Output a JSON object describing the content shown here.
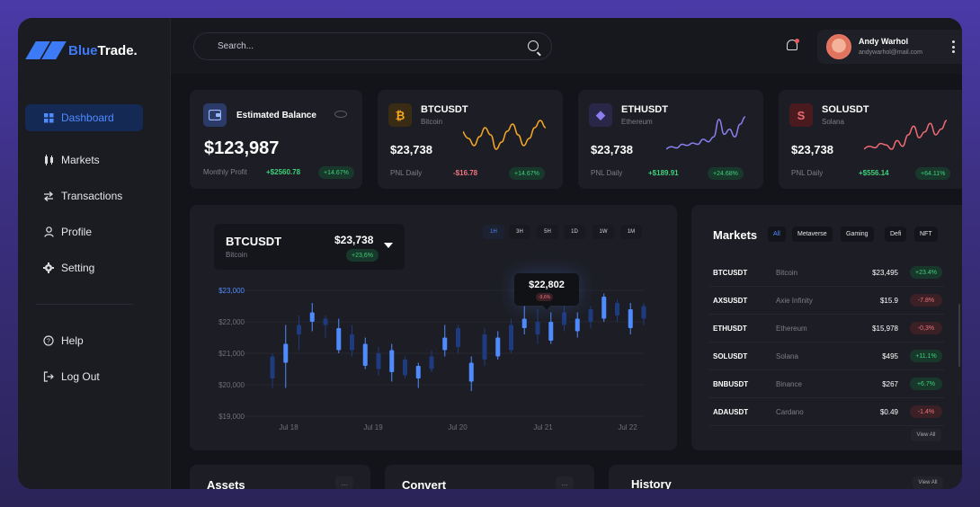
{
  "brand": {
    "name_part1": "Blue",
    "name_part2": "Trade."
  },
  "colors": {
    "accent": "#3d7af5",
    "positive": "#3ed07a",
    "negative": "#f0737e",
    "candle": "#4e8bff"
  },
  "nav": {
    "items": [
      {
        "label": "Dashboard",
        "icon": "grid-icon"
      },
      {
        "label": "Markets",
        "icon": "candles-icon"
      },
      {
        "label": "Transactions",
        "icon": "swap-icon"
      },
      {
        "label": "Profile",
        "icon": "user-icon"
      },
      {
        "label": "Setting",
        "icon": "gear-icon"
      }
    ],
    "bottom": [
      {
        "label": "Help",
        "icon": "help-icon"
      },
      {
        "label": "Log Out",
        "icon": "logout-icon"
      }
    ]
  },
  "search": {
    "placeholder": "Search..."
  },
  "user": {
    "name": "Andy Warhol",
    "email": "andywarhol@mail.com"
  },
  "balance": {
    "title": "Estimated Balance",
    "value": "$123,987",
    "label": "Monthly Profit",
    "change": "+$2560.78",
    "badge": "+14.67%"
  },
  "tickers": [
    {
      "symbol": "BTCUSDT",
      "name": "Bitcoin",
      "price": "$23,738",
      "pnl_label": "PNL Daily",
      "change": "-$16.78",
      "badge": "+14.67%",
      "color": "#f7a823",
      "bg": "#3a2c14",
      "glyph": "₿",
      "spark": [
        14,
        18,
        22,
        17,
        12,
        16,
        24,
        20,
        14,
        10,
        16,
        22,
        18,
        12,
        8,
        12
      ]
    },
    {
      "symbol": "ETHUSDT",
      "name": "Ethereum",
      "price": "$23,738",
      "pnl_label": "PNL Daily",
      "change": "+$189.91",
      "badge": "+24.68%",
      "color": "#8b7ff0",
      "bg": "#2a2648",
      "glyph": "◆",
      "spark": [
        30,
        28,
        29,
        26,
        27,
        25,
        26,
        22,
        24,
        20,
        6,
        18,
        14,
        20,
        10,
        4
      ]
    },
    {
      "symbol": "SOLUSDT",
      "name": "Solana",
      "price": "$23,738",
      "pnl_label": "PNL Daily",
      "change": "+$556.14",
      "badge": "+64.11%",
      "color": "#f06a73",
      "bg": "#4a1a1e",
      "glyph": "S",
      "spark": [
        26,
        24,
        25,
        22,
        23,
        26,
        20,
        24,
        16,
        10,
        18,
        14,
        8,
        16,
        12,
        6
      ]
    }
  ],
  "main_chart": {
    "symbol": "BTCUSDT",
    "name": "Bitcoin",
    "price": "$23,738",
    "badge": "+23,6%",
    "timeframes": [
      "1H",
      "3H",
      "5H",
      "1D",
      "1W",
      "1M"
    ],
    "tooltip": {
      "price": "$22,802",
      "badge": "-9,6%"
    }
  },
  "chart_data": {
    "type": "candlestick",
    "title": "BTCUSDT",
    "y_ticks": [
      "$23,000",
      "$22,000",
      "$21,000",
      "$20,000",
      "$19,000"
    ],
    "ylim": [
      19000,
      23500
    ],
    "x_ticks": [
      "Jul 18",
      "Jul 19",
      "Jul 20",
      "Jul 21",
      "Jul 22"
    ],
    "candles": [
      {
        "o": 20200,
        "c": 20900,
        "h": 21000,
        "l": 19900,
        "up": false
      },
      {
        "o": 20700,
        "c": 21300,
        "h": 21900,
        "l": 19900,
        "up": true
      },
      {
        "o": 21600,
        "c": 21900,
        "h": 22200,
        "l": 21100,
        "up": false
      },
      {
        "o": 22000,
        "c": 22300,
        "h": 22600,
        "l": 21700,
        "up": true
      },
      {
        "o": 21900,
        "c": 22100,
        "h": 22200,
        "l": 21500,
        "up": false
      },
      {
        "o": 21100,
        "c": 21800,
        "h": 22100,
        "l": 21000,
        "up": true
      },
      {
        "o": 21600,
        "c": 21100,
        "h": 21900,
        "l": 20900,
        "up": false
      },
      {
        "o": 21300,
        "c": 20600,
        "h": 21500,
        "l": 20500,
        "up": true
      },
      {
        "o": 20500,
        "c": 21000,
        "h": 21200,
        "l": 20300,
        "up": false
      },
      {
        "o": 21100,
        "c": 20400,
        "h": 21300,
        "l": 20100,
        "up": true
      },
      {
        "o": 20800,
        "c": 20300,
        "h": 20900,
        "l": 20200,
        "up": false
      },
      {
        "o": 20600,
        "c": 20200,
        "h": 20700,
        "l": 19900,
        "up": true
      },
      {
        "o": 20500,
        "c": 20900,
        "h": 21100,
        "l": 20400,
        "up": false
      },
      {
        "o": 21100,
        "c": 21500,
        "h": 21900,
        "l": 20900,
        "up": true
      },
      {
        "o": 21200,
        "c": 21800,
        "h": 21900,
        "l": 21000,
        "up": false
      },
      {
        "o": 20700,
        "c": 20100,
        "h": 20900,
        "l": 19800,
        "up": true
      },
      {
        "o": 20800,
        "c": 21600,
        "h": 21800,
        "l": 20600,
        "up": false
      },
      {
        "o": 20900,
        "c": 21500,
        "h": 21700,
        "l": 20800,
        "up": true
      },
      {
        "o": 21100,
        "c": 21900,
        "h": 22100,
        "l": 21000,
        "up": false
      },
      {
        "o": 21800,
        "c": 22100,
        "h": 22500,
        "l": 21600,
        "up": true
      },
      {
        "o": 21600,
        "c": 22000,
        "h": 22400,
        "l": 21300,
        "up": false
      },
      {
        "o": 21400,
        "c": 22000,
        "h": 22300,
        "l": 21300,
        "up": true
      },
      {
        "o": 21900,
        "c": 22300,
        "h": 22500,
        "l": 21700,
        "up": false
      },
      {
        "o": 21700,
        "c": 22100,
        "h": 22300,
        "l": 21500,
        "up": true
      },
      {
        "o": 22000,
        "c": 22400,
        "h": 22500,
        "l": 21800,
        "up": false
      },
      {
        "o": 22100,
        "c": 22800,
        "h": 22900,
        "l": 22000,
        "up": true
      },
      {
        "o": 22200,
        "c": 22600,
        "h": 22700,
        "l": 22000,
        "up": false
      },
      {
        "o": 21800,
        "c": 22400,
        "h": 22600,
        "l": 21600,
        "up": true
      },
      {
        "o": 22100,
        "c": 22500,
        "h": 22600,
        "l": 21900,
        "up": false
      }
    ]
  },
  "markets": {
    "title": "Markets",
    "tabs": [
      "All",
      "Metaverse",
      "Gaming",
      "Defi",
      "NFT"
    ],
    "rows": [
      {
        "symbol": "BTCUSDT",
        "name": "Bitcoin",
        "price": "$23,495",
        "change": "+23.4%",
        "up": true
      },
      {
        "symbol": "AXSUSDT",
        "name": "Axie Infinity",
        "price": "$15.9",
        "change": "-7.8%",
        "up": false
      },
      {
        "symbol": "ETHUSDT",
        "name": "Ethereum",
        "price": "$15,978",
        "change": "-0,3%",
        "up": false
      },
      {
        "symbol": "SOLUSDT",
        "name": "Solana",
        "price": "$495",
        "change": "+11.1%",
        "up": true
      },
      {
        "symbol": "BNBUSDT",
        "name": "Binance",
        "price": "$267",
        "change": "+6.7%",
        "up": true
      },
      {
        "symbol": "ADAUSDT",
        "name": "Cardano",
        "price": "$0.49",
        "change": "-1.4%",
        "up": false
      }
    ],
    "view_all": "View All"
  },
  "bottom_cards": {
    "assets": "Assets",
    "convert": "Convert",
    "history": "History",
    "more": "...",
    "view_all": "View All"
  }
}
